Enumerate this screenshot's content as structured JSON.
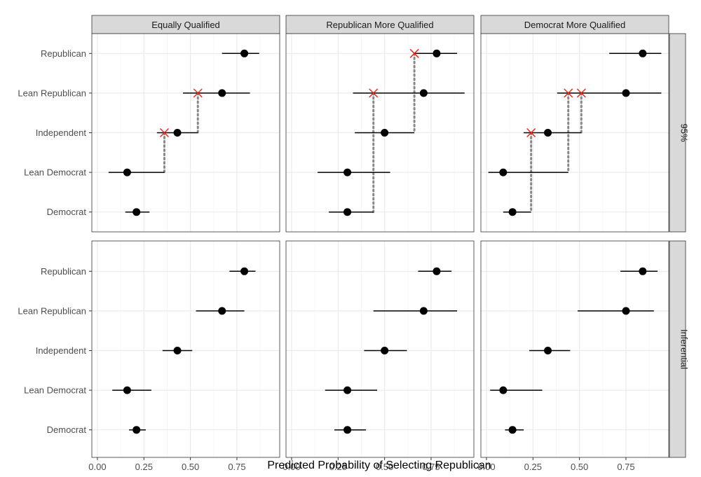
{
  "chart_data": {
    "type": "dot-errorbar-facet",
    "xlabel": "Predicted Probability of Selecting Republican",
    "ylabel": "",
    "xlim": [
      -0.03,
      0.98
    ],
    "xticks": [
      0.0,
      0.25,
      0.5,
      0.75
    ],
    "xtick_labels": [
      "0.00",
      "0.25",
      "0.50",
      "0.75"
    ],
    "categories": [
      "Republican",
      "Lean Republican",
      "Independent",
      "Lean Democrat",
      "Democrat"
    ],
    "columns": [
      "Equally Qualified",
      "Republican More Qualified",
      "Democrat More Qualified"
    ],
    "rows": [
      "95%",
      "Inferential"
    ],
    "grid": true,
    "colors": {
      "point": "#000000",
      "marker_x": "#e8291c",
      "connector": "#888888",
      "strip_fill": "#d9d9d9",
      "grid_major": "#ebebeb",
      "grid_minor": "#f5f5f5"
    },
    "panels": [
      {
        "column": "Equally Qualified",
        "row": "95%",
        "points": [
          {
            "category": "Republican",
            "estimate": 0.79,
            "low": 0.67,
            "high": 0.87
          },
          {
            "category": "Lean Republican",
            "estimate": 0.67,
            "low": 0.46,
            "high": 0.82,
            "x_mark": 0.54
          },
          {
            "category": "Independent",
            "estimate": 0.43,
            "low": 0.32,
            "high": 0.54,
            "x_mark": 0.36
          },
          {
            "category": "Lean Democrat",
            "estimate": 0.16,
            "low": 0.06,
            "high": 0.36
          },
          {
            "category": "Democrat",
            "estimate": 0.21,
            "low": 0.15,
            "high": 0.28
          }
        ],
        "connectors": [
          {
            "x": 0.54,
            "from": "Lean Republican",
            "to": "Independent"
          },
          {
            "x": 0.36,
            "from": "Independent",
            "to": "Lean Democrat"
          }
        ]
      },
      {
        "column": "Republican More Qualified",
        "row": "95%",
        "points": [
          {
            "category": "Republican",
            "estimate": 0.78,
            "low": 0.66,
            "high": 0.89,
            "x_mark": 0.66
          },
          {
            "category": "Lean Republican",
            "estimate": 0.71,
            "low": 0.33,
            "high": 0.93,
            "x_mark": 0.44
          },
          {
            "category": "Independent",
            "estimate": 0.5,
            "low": 0.34,
            "high": 0.66
          },
          {
            "category": "Lean Democrat",
            "estimate": 0.3,
            "low": 0.14,
            "high": 0.53
          },
          {
            "category": "Democrat",
            "estimate": 0.3,
            "low": 0.2,
            "high": 0.44
          }
        ],
        "connectors": [
          {
            "x": 0.66,
            "from": "Republican",
            "to": "Independent"
          },
          {
            "x": 0.44,
            "from": "Lean Republican",
            "to": "Democrat"
          }
        ]
      },
      {
        "column": "Democrat More Qualified",
        "row": "95%",
        "points": [
          {
            "category": "Republican",
            "estimate": 0.84,
            "low": 0.66,
            "high": 0.94
          },
          {
            "category": "Lean Republican",
            "estimate": 0.75,
            "low": 0.38,
            "high": 0.94,
            "x_mark": 0.44,
            "x_mark2": 0.51
          },
          {
            "category": "Independent",
            "estimate": 0.33,
            "low": 0.2,
            "high": 0.51,
            "x_mark": 0.24
          },
          {
            "category": "Lean Democrat",
            "estimate": 0.09,
            "low": 0.01,
            "high": 0.44
          },
          {
            "category": "Democrat",
            "estimate": 0.14,
            "low": 0.09,
            "high": 0.24
          }
        ],
        "connectors": [
          {
            "x": 0.51,
            "from": "Lean Republican",
            "to": "Independent"
          },
          {
            "x": 0.44,
            "from": "Lean Republican",
            "to": "Lean Democrat"
          },
          {
            "x": 0.24,
            "from": "Independent",
            "to": "Democrat"
          }
        ]
      },
      {
        "column": "Equally Qualified",
        "row": "Inferential",
        "points": [
          {
            "category": "Republican",
            "estimate": 0.79,
            "low": 0.71,
            "high": 0.85
          },
          {
            "category": "Lean Republican",
            "estimate": 0.67,
            "low": 0.53,
            "high": 0.79
          },
          {
            "category": "Independent",
            "estimate": 0.43,
            "low": 0.35,
            "high": 0.51
          },
          {
            "category": "Lean Democrat",
            "estimate": 0.16,
            "low": 0.08,
            "high": 0.29
          },
          {
            "category": "Democrat",
            "estimate": 0.21,
            "low": 0.17,
            "high": 0.26
          }
        ],
        "connectors": []
      },
      {
        "column": "Republican More Qualified",
        "row": "Inferential",
        "points": [
          {
            "category": "Republican",
            "estimate": 0.78,
            "low": 0.68,
            "high": 0.86
          },
          {
            "category": "Lean Republican",
            "estimate": 0.71,
            "low": 0.44,
            "high": 0.89
          },
          {
            "category": "Independent",
            "estimate": 0.5,
            "low": 0.39,
            "high": 0.62
          },
          {
            "category": "Lean Democrat",
            "estimate": 0.3,
            "low": 0.18,
            "high": 0.46
          },
          {
            "category": "Democrat",
            "estimate": 0.3,
            "low": 0.23,
            "high": 0.4
          }
        ],
        "connectors": []
      },
      {
        "column": "Democrat More Qualified",
        "row": "Inferential",
        "points": [
          {
            "category": "Republican",
            "estimate": 0.84,
            "low": 0.72,
            "high": 0.92
          },
          {
            "category": "Lean Republican",
            "estimate": 0.75,
            "low": 0.49,
            "high": 0.9
          },
          {
            "category": "Independent",
            "estimate": 0.33,
            "low": 0.23,
            "high": 0.45
          },
          {
            "category": "Lean Democrat",
            "estimate": 0.09,
            "low": 0.02,
            "high": 0.3
          },
          {
            "category": "Democrat",
            "estimate": 0.14,
            "low": 0.1,
            "high": 0.2
          }
        ],
        "connectors": []
      }
    ]
  }
}
